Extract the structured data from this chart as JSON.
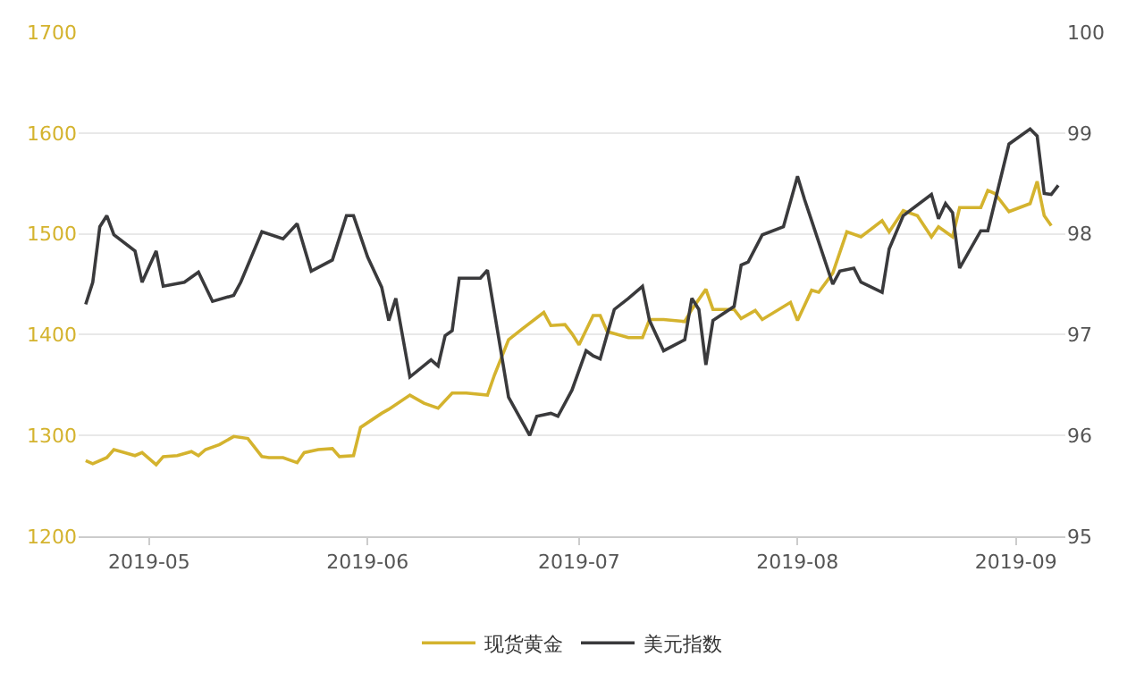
{
  "chart_data": {
    "type": "line",
    "xlim": [
      "2019-04-21",
      "2019-09-08"
    ],
    "xticks": [
      "2019-05",
      "2019-06",
      "2019-07",
      "2019-08",
      "2019-09"
    ],
    "ylim": [
      1200,
      1700
    ],
    "yticks": [
      1200,
      1300,
      1400,
      1500,
      1600,
      1700
    ],
    "y2lim": [
      95,
      100
    ],
    "y2ticks": [
      95,
      96,
      97,
      98,
      99,
      100
    ],
    "grid": "y",
    "legend": "bottom",
    "marker": "none",
    "line_style": "solid",
    "series": [
      {
        "name": "现货黄金",
        "color": "#d4b32e",
        "x": [
          "2019-04-22",
          "2019-04-23",
          "2019-04-25",
          "2019-04-26",
          "2019-04-29",
          "2019-04-30",
          "2019-05-02",
          "2019-05-03",
          "2019-05-05",
          "2019-05-07",
          "2019-05-08",
          "2019-05-09",
          "2019-05-11",
          "2019-05-13",
          "2019-05-15",
          "2019-05-17",
          "2019-05-18",
          "2019-05-20",
          "2019-05-22",
          "2019-05-23",
          "2019-05-25",
          "2019-05-27",
          "2019-05-28",
          "2019-05-30",
          "2019-05-31",
          "2019-06-03",
          "2019-06-04",
          "2019-06-07",
          "2019-06-09",
          "2019-06-11",
          "2019-06-13",
          "2019-06-15",
          "2019-06-18",
          "2019-06-19",
          "2019-06-21",
          "2019-06-23",
          "2019-06-26",
          "2019-06-27",
          "2019-06-29",
          "2019-06-30",
          "2019-07-01",
          "2019-07-03",
          "2019-07-04",
          "2019-07-05",
          "2019-07-08",
          "2019-07-10",
          "2019-07-11",
          "2019-07-13",
          "2019-07-16",
          "2019-07-17",
          "2019-07-19",
          "2019-07-20",
          "2019-07-23",
          "2019-07-24",
          "2019-07-26",
          "2019-07-27",
          "2019-07-31",
          "2019-08-01",
          "2019-08-03",
          "2019-08-04",
          "2019-08-06",
          "2019-08-08",
          "2019-08-10",
          "2019-08-13",
          "2019-08-14",
          "2019-08-16",
          "2019-08-18",
          "2019-08-20",
          "2019-08-21",
          "2019-08-23",
          "2019-08-24",
          "2019-08-27",
          "2019-08-28",
          "2019-08-29",
          "2019-08-31",
          "2019-09-03",
          "2019-09-04",
          "2019-09-05",
          "2019-09-06"
        ],
        "values": [
          1275,
          1272,
          1278,
          1286,
          1280,
          1283,
          1271,
          1279,
          1280,
          1284,
          1280,
          1286,
          1291,
          1299,
          1297,
          1279,
          1278,
          1278,
          1273,
          1283,
          1286,
          1287,
          1279,
          1280,
          1308,
          1322,
          1326,
          1340,
          1332,
          1327,
          1342,
          1342,
          1340,
          1360,
          1395,
          1406,
          1422,
          1409,
          1410,
          1401,
          1390,
          1419,
          1419,
          1403,
          1397,
          1397,
          1415,
          1415,
          1413,
          1425,
          1445,
          1425,
          1425,
          1416,
          1424,
          1415,
          1432,
          1414,
          1444,
          1442,
          1461,
          1502,
          1497,
          1513,
          1502,
          1523,
          1518,
          1497,
          1507,
          1497,
          1526,
          1526,
          1543,
          1540,
          1522,
          1530,
          1552,
          1518,
          1508
        ]
      },
      {
        "name": "美元指数",
        "color": "#3a3a3c",
        "axis": "y2",
        "x": [
          "2019-04-22",
          "2019-04-23",
          "2019-04-24",
          "2019-04-25",
          "2019-04-26",
          "2019-04-29",
          "2019-04-30",
          "2019-05-02",
          "2019-05-03",
          "2019-05-06",
          "2019-05-08",
          "2019-05-10",
          "2019-05-13",
          "2019-05-14",
          "2019-05-17",
          "2019-05-20",
          "2019-05-22",
          "2019-05-24",
          "2019-05-27",
          "2019-05-29",
          "2019-05-30",
          "2019-06-01",
          "2019-06-03",
          "2019-06-04",
          "2019-06-05",
          "2019-06-07",
          "2019-06-10",
          "2019-06-11",
          "2019-06-12",
          "2019-06-13",
          "2019-06-14",
          "2019-06-17",
          "2019-06-18",
          "2019-06-21",
          "2019-06-24",
          "2019-06-25",
          "2019-06-27",
          "2019-06-28",
          "2019-06-30",
          "2019-07-02",
          "2019-07-03",
          "2019-07-04",
          "2019-07-06",
          "2019-07-08",
          "2019-07-10",
          "2019-07-11",
          "2019-07-13",
          "2019-07-16",
          "2019-07-17",
          "2019-07-18",
          "2019-07-19",
          "2019-07-20",
          "2019-07-23",
          "2019-07-24",
          "2019-07-25",
          "2019-07-27",
          "2019-07-30",
          "2019-08-01",
          "2019-08-02",
          "2019-08-03",
          "2019-08-06",
          "2019-08-07",
          "2019-08-09",
          "2019-08-10",
          "2019-08-13",
          "2019-08-14",
          "2019-08-16",
          "2019-08-20",
          "2019-08-21",
          "2019-08-22",
          "2019-08-23",
          "2019-08-24",
          "2019-08-27",
          "2019-08-28",
          "2019-08-31",
          "2019-09-03",
          "2019-09-04",
          "2019-09-05",
          "2019-09-06",
          "2019-09-07"
        ],
        "values": [
          97.3,
          97.52,
          98.07,
          98.18,
          97.99,
          97.83,
          97.52,
          97.83,
          97.48,
          97.52,
          97.62,
          97.33,
          97.39,
          97.52,
          98.02,
          97.95,
          98.1,
          97.63,
          97.74,
          98.18,
          98.18,
          97.77,
          97.47,
          97.14,
          97.36,
          96.58,
          96.75,
          96.69,
          96.99,
          97.04,
          97.56,
          97.56,
          97.64,
          96.38,
          96.0,
          96.19,
          96.22,
          96.19,
          96.45,
          96.84,
          96.79,
          96.76,
          97.25,
          97.36,
          97.48,
          97.14,
          96.84,
          96.95,
          97.36,
          97.25,
          96.7,
          97.14,
          97.28,
          97.69,
          97.72,
          97.99,
          98.07,
          98.57,
          98.34,
          98.13,
          97.5,
          97.63,
          97.66,
          97.52,
          97.42,
          97.85,
          98.18,
          98.39,
          98.15,
          98.3,
          98.21,
          97.66,
          98.03,
          98.03,
          98.89,
          99.04,
          98.97,
          98.4,
          98.39,
          98.48
        ]
      }
    ]
  }
}
